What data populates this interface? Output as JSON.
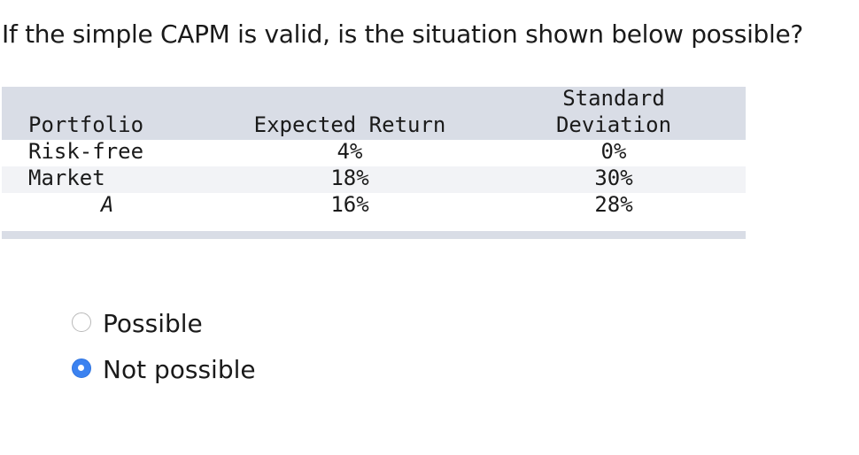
{
  "question": "If the simple CAPM is valid, is the situation shown below possible?",
  "table": {
    "headers": {
      "portfolio": "Portfolio",
      "expected_return": "Expected Return",
      "std_dev_line1": "Standard",
      "std_dev_line2": "Deviation"
    },
    "rows": [
      {
        "portfolio": "Risk-free",
        "expected_return": "4%",
        "std_dev": "0%"
      },
      {
        "portfolio": "Market",
        "expected_return": "18%",
        "std_dev": "30%"
      },
      {
        "portfolio": "A",
        "expected_return": "16%",
        "std_dev": "28%"
      }
    ]
  },
  "options": [
    {
      "label": "Possible",
      "selected": false
    },
    {
      "label": "Not possible",
      "selected": true
    }
  ],
  "colors": {
    "header_bg": "#d9dde6",
    "row_stripe": "#f2f3f6",
    "radio_selected": "#3b82f0",
    "radio_unselected_border": "#b9b9b9"
  }
}
